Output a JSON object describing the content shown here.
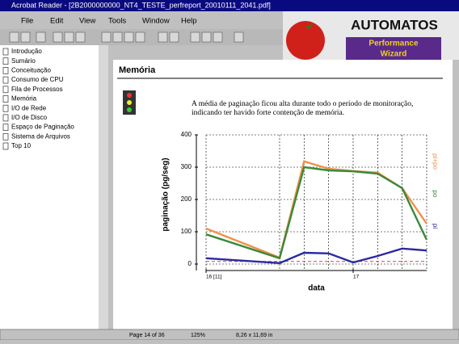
{
  "window": {
    "title": "Acrobat Reader - [2B2000000000_NT4_TESTE_perfreport_20010111_2041.pdf]"
  },
  "menu": [
    "File",
    "Edit",
    "View",
    "Tools",
    "Window",
    "Help"
  ],
  "logo": {
    "brand": "AUTOMATOS",
    "product_line1": "Performance",
    "product_line2": "Wizard"
  },
  "bookmarks": [
    "Introdução",
    "Sumário",
    "Conceituação",
    "Consumo de CPU",
    "Fila de Processos",
    "Memória",
    "I/O de Rede",
    "I/O de Disco",
    "Espaço de Paginação",
    "Sistema de Arquivos",
    "Top 10"
  ],
  "page": {
    "heading": "Memória",
    "paragraph_line1": "A média de paginação ficou alta durante todo o período de monitoração,",
    "paragraph_line2": "indicando ter havido forte contenção de memória."
  },
  "status": {
    "page": "Page 14 of 36",
    "zoom": "125%",
    "size": "8,26 x 11,69 in"
  },
  "chart_data": {
    "type": "line",
    "ylabel": "paginação (pg/seg)",
    "xlabel": "data",
    "x": [
      0,
      9,
      12,
      15,
      18,
      21,
      24,
      27
    ],
    "xlim": [
      0,
      27
    ],
    "xticks": [
      {
        "value": 0,
        "label": "16 [11]"
      },
      {
        "value": 18,
        "label": "17"
      }
    ],
    "ylim": [
      -20,
      400
    ],
    "yticks": [
      0,
      100,
      200,
      300,
      400
    ],
    "grid": true,
    "reference_line": {
      "value": 8,
      "color": "#d84040"
    },
    "series": [
      {
        "name": "pi+po",
        "color": "#f0904a",
        "values": [
          110,
          20,
          318,
          295,
          288,
          283,
          235,
          125
        ]
      },
      {
        "name": "po",
        "color": "#3a8a3a",
        "values": [
          92,
          18,
          300,
          290,
          287,
          280,
          235,
          75
        ]
      },
      {
        "name": "pi",
        "color": "#2a2aa0",
        "values": [
          18,
          3,
          35,
          33,
          5,
          25,
          48,
          42
        ]
      }
    ]
  }
}
